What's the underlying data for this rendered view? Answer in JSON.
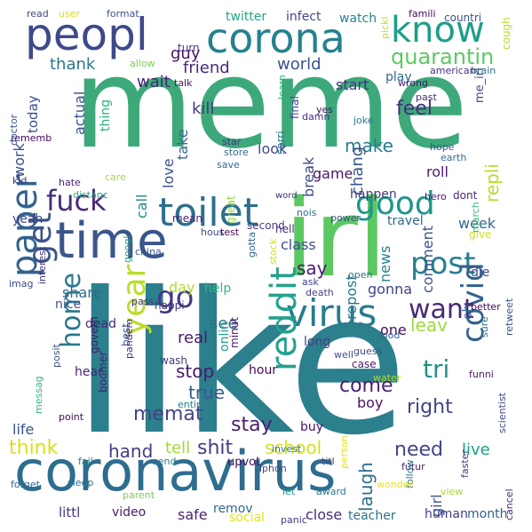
{
  "words": [
    {
      "text": "like",
      "color": "#2c7f8c"
    },
    {
      "text": "meme",
      "color": "#3da97a"
    },
    {
      "text": "irl",
      "color": "#5cc863"
    },
    {
      "text": "coronavirus",
      "color": "#2e6d8e"
    },
    {
      "text": "time",
      "color": "#39568c"
    },
    {
      "text": "corona",
      "color": "#26818e"
    },
    {
      "text": "peopl",
      "color": "#3e4989"
    },
    {
      "text": "know",
      "color": "#1f9e89"
    },
    {
      "text": "toilet",
      "color": "#2d708e"
    },
    {
      "text": "virus",
      "color": "#287c8e"
    },
    {
      "text": "paper",
      "color": "#33638d"
    },
    {
      "text": "reddit",
      "color": "#25a18e"
    },
    {
      "text": "good",
      "color": "#1f968b"
    },
    {
      "text": "post",
      "color": "#27808e"
    },
    {
      "text": "fuck",
      "color": "#472c7a"
    },
    {
      "text": "year",
      "color": "#b8de29"
    },
    {
      "text": "covid",
      "color": "#34618d"
    },
    {
      "text": "get",
      "color": "#3b528b"
    },
    {
      "text": "home",
      "color": "#2a788e"
    },
    {
      "text": "go",
      "color": "#443983"
    },
    {
      "text": "want",
      "color": "#482878"
    },
    {
      "text": "quarantin",
      "color": "#5ec962"
    },
    {
      "text": "memat",
      "color": "#414487"
    },
    {
      "text": "school",
      "color": "#d2e21b"
    },
    {
      "text": "shit",
      "color": "#433e85"
    },
    {
      "text": "right",
      "color": "#404588"
    },
    {
      "text": "laugh",
      "color": "#2e6e8e"
    },
    {
      "text": "come",
      "color": "#482173"
    },
    {
      "text": "stay",
      "color": "#481d6f"
    },
    {
      "text": "need",
      "color": "#3f4788"
    },
    {
      "text": "think",
      "color": "#d8e219"
    },
    {
      "text": "hand",
      "color": "#443b84"
    },
    {
      "text": "littl",
      "color": "#46337f"
    },
    {
      "text": "video",
      "color": "#481b6d"
    },
    {
      "text": "safe",
      "color": "#482475"
    },
    {
      "text": "remov",
      "color": "#31678e"
    },
    {
      "text": "social",
      "color": "#e5e419"
    },
    {
      "text": "close",
      "color": "#46307e"
    },
    {
      "text": "teacher",
      "color": "#2c728e"
    },
    {
      "text": "human",
      "color": "#443a83"
    },
    {
      "text": "month",
      "color": "#34608d"
    },
    {
      "text": "girl",
      "color": "#3b528b"
    },
    {
      "text": "live",
      "color": "#1fa088"
    },
    {
      "text": "boy",
      "color": "#481467"
    },
    {
      "text": "tri",
      "color": "#21918c"
    },
    {
      "text": "leav",
      "color": "#9fda3a"
    },
    {
      "text": "one",
      "color": "#471063"
    },
    {
      "text": "repost",
      "color": "#2a768e"
    },
    {
      "text": "gonna",
      "color": "#414487"
    },
    {
      "text": "news",
      "color": "#26828e"
    },
    {
      "text": "comment",
      "color": "#3b528b"
    },
    {
      "text": "week",
      "color": "#31688e"
    },
    {
      "text": "dont",
      "color": "#482878"
    },
    {
      "text": "happen",
      "color": "#44397f"
    },
    {
      "text": "roll",
      "color": "#481c6e"
    },
    {
      "text": "make",
      "color": "#287d8e"
    },
    {
      "text": "chang",
      "color": "#39558c"
    },
    {
      "text": "break",
      "color": "#3e4a89"
    },
    {
      "text": "look",
      "color": "#3e4c8a"
    },
    {
      "text": "game",
      "color": "#481769"
    },
    {
      "text": "feel",
      "color": "#472d7b"
    },
    {
      "text": "repli",
      "color": "#b5de2b"
    },
    {
      "text": "kill",
      "color": "#443983"
    },
    {
      "text": "love",
      "color": "#3b528b"
    },
    {
      "text": "take",
      "color": "#30698e"
    },
    {
      "text": "world",
      "color": "#3a538b"
    },
    {
      "text": "start",
      "color": "#46307e"
    },
    {
      "text": "play",
      "color": "#31688e"
    },
    {
      "text": "thank",
      "color": "#2a788e"
    },
    {
      "text": "friend",
      "color": "#472a7a"
    },
    {
      "text": "wait",
      "color": "#482576"
    },
    {
      "text": "guy",
      "color": "#471365"
    },
    {
      "text": "twitter",
      "color": "#22a785"
    },
    {
      "text": "infect",
      "color": "#3f4788"
    },
    {
      "text": "watch",
      "color": "#24868e"
    },
    {
      "text": "turn",
      "color": "#46337f"
    },
    {
      "text": "allow",
      "color": "#7ad151"
    },
    {
      "text": "actual",
      "color": "#3b528b"
    },
    {
      "text": "thing",
      "color": "#29af7f"
    },
    {
      "text": "work",
      "color": "#3e4a89"
    },
    {
      "text": "today",
      "color": "#3d4e8a"
    },
    {
      "text": "sorri",
      "color": "#2b748e"
    },
    {
      "text": "final",
      "color": "#404588"
    },
    {
      "text": "care",
      "color": "#a8db34"
    },
    {
      "text": "call",
      "color": "#23898e"
    },
    {
      "text": "mean",
      "color": "#482677"
    },
    {
      "text": "class",
      "color": "#3c4f8a"
    },
    {
      "text": "say",
      "color": "#481f70"
    },
    {
      "text": "share",
      "color": "#2f6b8e"
    },
    {
      "text": "nice",
      "color": "#3b528b"
    },
    {
      "text": "dead",
      "color": "#482979"
    },
    {
      "text": "day",
      "color": "#b2dd2d"
    },
    {
      "text": "help",
      "color": "#36b77b"
    },
    {
      "text": "real",
      "color": "#481b6d"
    },
    {
      "text": "see",
      "color": "#2d718e"
    },
    {
      "text": "stop",
      "color": "#481c6e"
    },
    {
      "text": "true",
      "color": "#38588c"
    },
    {
      "text": "tell",
      "color": "#a2da37"
    },
    {
      "text": "wash",
      "color": "#443b84"
    },
    {
      "text": "life",
      "color": "#3b528b"
    },
    {
      "text": "yeah",
      "color": "#3f4889"
    },
    {
      "text": "kid",
      "color": "#472f7d"
    },
    {
      "text": "hate",
      "color": "#482173"
    },
    {
      "text": "distanc",
      "color": "#29af7f"
    },
    {
      "text": "word",
      "color": "#46337f"
    },
    {
      "text": "second",
      "color": "#433e85"
    },
    {
      "text": "hell",
      "color": "#472c7a"
    },
    {
      "text": "travel",
      "color": "#31688e"
    },
    {
      "text": "give",
      "color": "#d0e11c"
    },
    {
      "text": "march",
      "color": "#35b779"
    },
    {
      "text": "die",
      "color": "#3f4889"
    },
    {
      "text": "hour",
      "color": "#46085c"
    },
    {
      "text": "onlin",
      "color": "#1f9f88"
    },
    {
      "text": "minut",
      "color": "#48186a"
    },
    {
      "text": "long",
      "color": "#423f85"
    },
    {
      "text": "case",
      "color": "#481a6c"
    },
    {
      "text": "buy",
      "color": "#481467"
    },
    {
      "text": "upvot",
      "color": "#471063"
    },
    {
      "text": "invest",
      "color": "#2c728e"
    },
    {
      "text": "hear",
      "color": "#482575"
    },
    {
      "text": "happi",
      "color": "#46337f"
    },
    {
      "text": "great",
      "color": "#8fd744"
    },
    {
      "text": "best",
      "color": "#3b528b"
    },
    {
      "text": "pandem",
      "color": "#46307e"
    },
    {
      "text": "boomer",
      "color": "#481f70"
    },
    {
      "text": "govern",
      "color": "#481467"
    },
    {
      "text": "entir",
      "color": "#287c8e"
    },
    {
      "text": "send",
      "color": "#287c8e"
    },
    {
      "text": "iphon",
      "color": "#414487"
    },
    {
      "text": "person",
      "color": "#e2e418"
    },
    {
      "text": "titl",
      "color": "#404588"
    },
    {
      "text": "futur",
      "color": "#482173"
    },
    {
      "text": "follow",
      "color": "#2c738e"
    },
    {
      "text": "view",
      "color": "#a8db34"
    },
    {
      "text": "award",
      "color": "#2a788e"
    },
    {
      "text": "wonder",
      "color": "#e7e419"
    },
    {
      "text": "panic",
      "color": "#443a83"
    },
    {
      "text": "let",
      "color": "#1f9a8a"
    },
    {
      "text": "fail",
      "color": "#2a788e"
    },
    {
      "text": "sleep",
      "color": "#2c728e"
    },
    {
      "text": "forget",
      "color": "#30698e"
    },
    {
      "text": "parent",
      "color": "#7ad151"
    },
    {
      "text": "point",
      "color": "#46085c"
    },
    {
      "text": "posit",
      "color": "#3b528b"
    },
    {
      "text": "messag",
      "color": "#35b779"
    },
    {
      "text": "interest",
      "color": "#46337f"
    },
    {
      "text": "imag",
      "color": "#3e4989"
    },
    {
      "text": "googl",
      "color": "#1f9e89"
    },
    {
      "text": "pass",
      "color": "#46307e"
    },
    {
      "text": "read",
      "color": "#3e4a89"
    },
    {
      "text": "user",
      "color": "#d8e219"
    },
    {
      "text": "format",
      "color": "#3b528b"
    },
    {
      "text": "famili",
      "color": "#46085c"
    },
    {
      "text": "countri",
      "color": "#3a538b"
    },
    {
      "text": "cough",
      "color": "#b5de2b"
    },
    {
      "text": "pickl",
      "color": "#c8e020"
    },
    {
      "text": "american",
      "color": "#46307e"
    },
    {
      "text": "brain",
      "color": "#2e6e8e"
    },
    {
      "text": "wrong",
      "color": "#481b6d"
    },
    {
      "text": "past",
      "color": "#472d7b"
    },
    {
      "text": "me_irl",
      "color": "#3e4c8a"
    },
    {
      "text": "talk",
      "color": "#481769"
    },
    {
      "text": "rememb",
      "color": "#46085c"
    },
    {
      "text": "doctor",
      "color": "#3b528b"
    },
    {
      "text": "learn",
      "color": "#27ad81"
    },
    {
      "text": "yes",
      "color": "#481467"
    },
    {
      "text": "joke",
      "color": "#2a788e"
    },
    {
      "text": "damn",
      "color": "#482878"
    },
    {
      "text": "star",
      "color": "#443983"
    },
    {
      "text": "store",
      "color": "#2e6e8e"
    },
    {
      "text": "save",
      "color": "#31688e"
    },
    {
      "text": "hope",
      "color": "#3b528b"
    },
    {
      "text": "earth",
      "color": "#2e6e8e"
    },
    {
      "text": "hero",
      "color": "#481b6d"
    },
    {
      "text": "nois",
      "color": "#2c728e"
    },
    {
      "text": "power",
      "color": "#3b528b"
    },
    {
      "text": "hous",
      "color": "#3e4a89"
    },
    {
      "text": "test",
      "color": "#46085c"
    },
    {
      "text": "gotta",
      "color": "#30698e"
    },
    {
      "text": "stock",
      "color": "#d0e11c"
    },
    {
      "text": "ask",
      "color": "#414487"
    },
    {
      "text": "open",
      "color": "#2c728e"
    },
    {
      "text": "death",
      "color": "#433e85"
    },
    {
      "text": "china",
      "color": "#3b528b"
    },
    {
      "text": "oh",
      "color": "#2e6e8e"
    },
    {
      "text": "better",
      "color": "#46085c"
    },
    {
      "text": "retweet",
      "color": "#39558c"
    },
    {
      "text": "sure",
      "color": "#2c728e"
    },
    {
      "text": "funni",
      "color": "#481769"
    },
    {
      "text": "guess",
      "color": "#3e4c8a"
    },
    {
      "text": "well",
      "color": "#3b528b"
    },
    {
      "text": "food",
      "color": "#2e6e8e"
    },
    {
      "text": "water",
      "color": "#a8db34"
    },
    {
      "text": "scientist",
      "color": "#3e4a89"
    },
    {
      "text": "faster",
      "color": "#443983"
    },
    {
      "text": "cancel",
      "color": "#482878"
    }
  ]
}
